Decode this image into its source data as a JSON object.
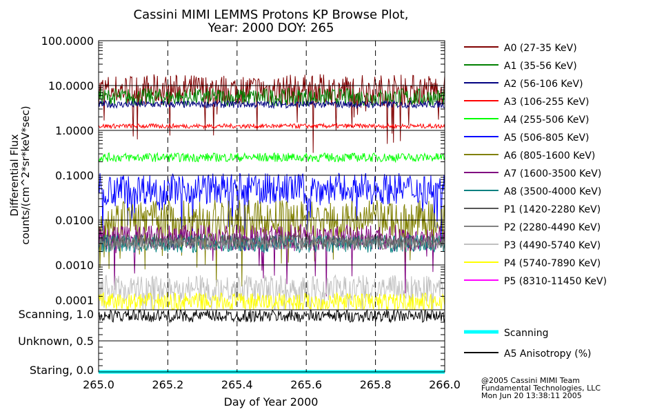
{
  "chart_data": {
    "type": "line",
    "title": "Cassini MIMI LEMMS Protons KP Browse Plot,",
    "subtitle": "Year: 2000 DOY: 265",
    "xlabel": "Day of Year 2000",
    "ylabel_line1": "Differential Flux",
    "ylabel_line2": "counts/(cm^2*sr*keV*sec)",
    "xlim": [
      265.0,
      266.0
    ],
    "x_ticks": [
      "265.0",
      "265.2",
      "265.4",
      "265.6",
      "265.8",
      "266.0"
    ],
    "x_tick_values": [
      265.0,
      265.2,
      265.4,
      265.6,
      265.8,
      266.0
    ],
    "ylim": [
      0.0001,
      100
    ],
    "yscale": "log",
    "y_ticks": [
      "100.0000",
      "10.0000",
      "1.0000",
      "0.1000",
      "0.0100",
      "0.0010",
      "0.0001"
    ],
    "y_tick_values": [
      100,
      10,
      1,
      0.1,
      0.01,
      0.001,
      0.0001
    ],
    "grid": true,
    "legend_placement": "right",
    "series": [
      {
        "name": "A0 (27-35 KeV)",
        "color": "#800000",
        "level": 8.0,
        "spread": 0.35
      },
      {
        "name": "A1 (35-56 KeV)",
        "color": "#008000",
        "level": 5.5,
        "spread": 0.2
      },
      {
        "name": "A2 (56-106 KeV)",
        "color": "#000080",
        "level": 3.8,
        "spread": 0.08
      },
      {
        "name": "A3 (106-255 KeV)",
        "color": "#ff0000",
        "level": 1.25,
        "spread": 0.05
      },
      {
        "name": "A4 (255-506 KeV)",
        "color": "#00ff00",
        "level": 0.25,
        "spread": 0.1
      },
      {
        "name": "A5 (506-805 KeV)",
        "color": "#0000ff",
        "level": 0.05,
        "spread": 0.35
      },
      {
        "name": "A6 (805-1600 KeV)",
        "color": "#808000",
        "level": 0.01,
        "spread": 0.45
      },
      {
        "name": "A7 (1600-3500 KeV)",
        "color": "#800080",
        "level": 0.004,
        "spread": 0.3
      },
      {
        "name": "A8 (3500-4000 KeV)",
        "color": "#008080",
        "level": 0.003,
        "spread": 0.2
      },
      {
        "name": "P1 (1420-2280 KeV)",
        "color": "#555555",
        "level": 0.0035,
        "spread": 0.15
      },
      {
        "name": "P2 (2280-4490 KeV)",
        "color": "#808080",
        "level": 0.003,
        "spread": 0.15
      },
      {
        "name": "P3 (4490-5740 KeV)",
        "color": "#c0c0c0",
        "level": 0.0003,
        "spread": 0.3
      },
      {
        "name": "P4 (5740-7890 KeV)",
        "color": "#ffff00",
        "level": 0.00015,
        "spread": 0.2
      },
      {
        "name": "P5 (8310-11450 KeV)",
        "color": "#ff00ff",
        "level": null,
        "spread": 0
      }
    ],
    "lower_panel": {
      "ylim": [
        0.0,
        1.0
      ],
      "y_ticks": [
        "Scanning, 1.0",
        "Unknown, 0.5",
        "Staring, 0.0"
      ],
      "y_tick_values": [
        1.0,
        0.5,
        0.0
      ],
      "series": [
        {
          "name": "Scanning",
          "color": "#00ffff",
          "level": 0.0
        },
        {
          "name": "A5 Anisotropy (%)",
          "color": "#000000",
          "level": 0.9
        }
      ]
    },
    "footer": [
      "@2005 Cassini MIMI Team",
      "Fundamental Technologies, LLC",
      "Mon Jun 20 13:38:11 2005"
    ]
  }
}
